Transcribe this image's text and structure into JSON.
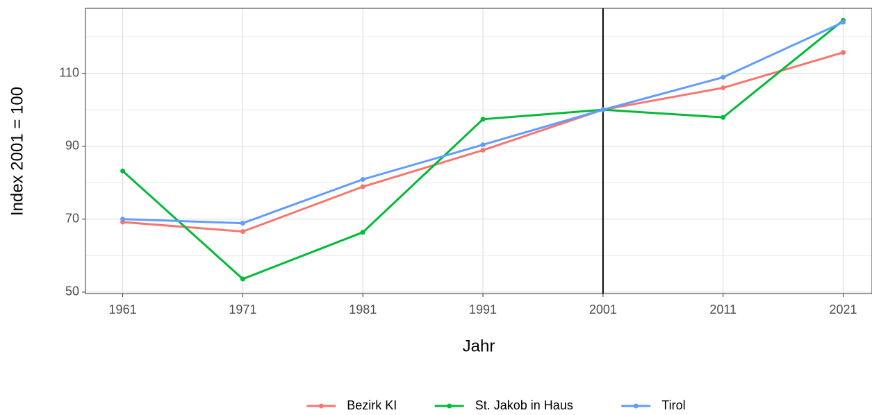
{
  "chart_data": {
    "type": "line",
    "x_label": "Jahr",
    "y_label": "Index 2001 = 100",
    "x": [
      1961,
      1971,
      1981,
      1991,
      2001,
      2011,
      2021
    ],
    "series": [
      {
        "name": "Bezirk KI",
        "color": "#F8766D",
        "values": [
          69.2,
          66.6,
          78.9,
          88.9,
          100,
          106.0,
          115.7
        ]
      },
      {
        "name": "St. Jakob in Haus",
        "color": "#00BA38",
        "values": [
          83.2,
          53.6,
          66.4,
          97.4,
          100,
          97.9,
          124.5
        ]
      },
      {
        "name": "Tirol",
        "color": "#619CFF",
        "values": [
          70.0,
          68.9,
          80.9,
          90.4,
          100,
          108.9,
          124.0
        ]
      }
    ],
    "xlim": [
      1957.9,
      2023.4
    ],
    "xticks": [
      1961,
      1971,
      1981,
      1991,
      2001,
      2011,
      2021
    ],
    "ylim": [
      49.6,
      127.8
    ],
    "yticks": [
      50,
      70,
      90,
      110
    ],
    "minor_yticks": [
      60,
      80,
      100,
      120
    ],
    "vline": 2001,
    "grid": true,
    "legend_position": "bottom"
  }
}
